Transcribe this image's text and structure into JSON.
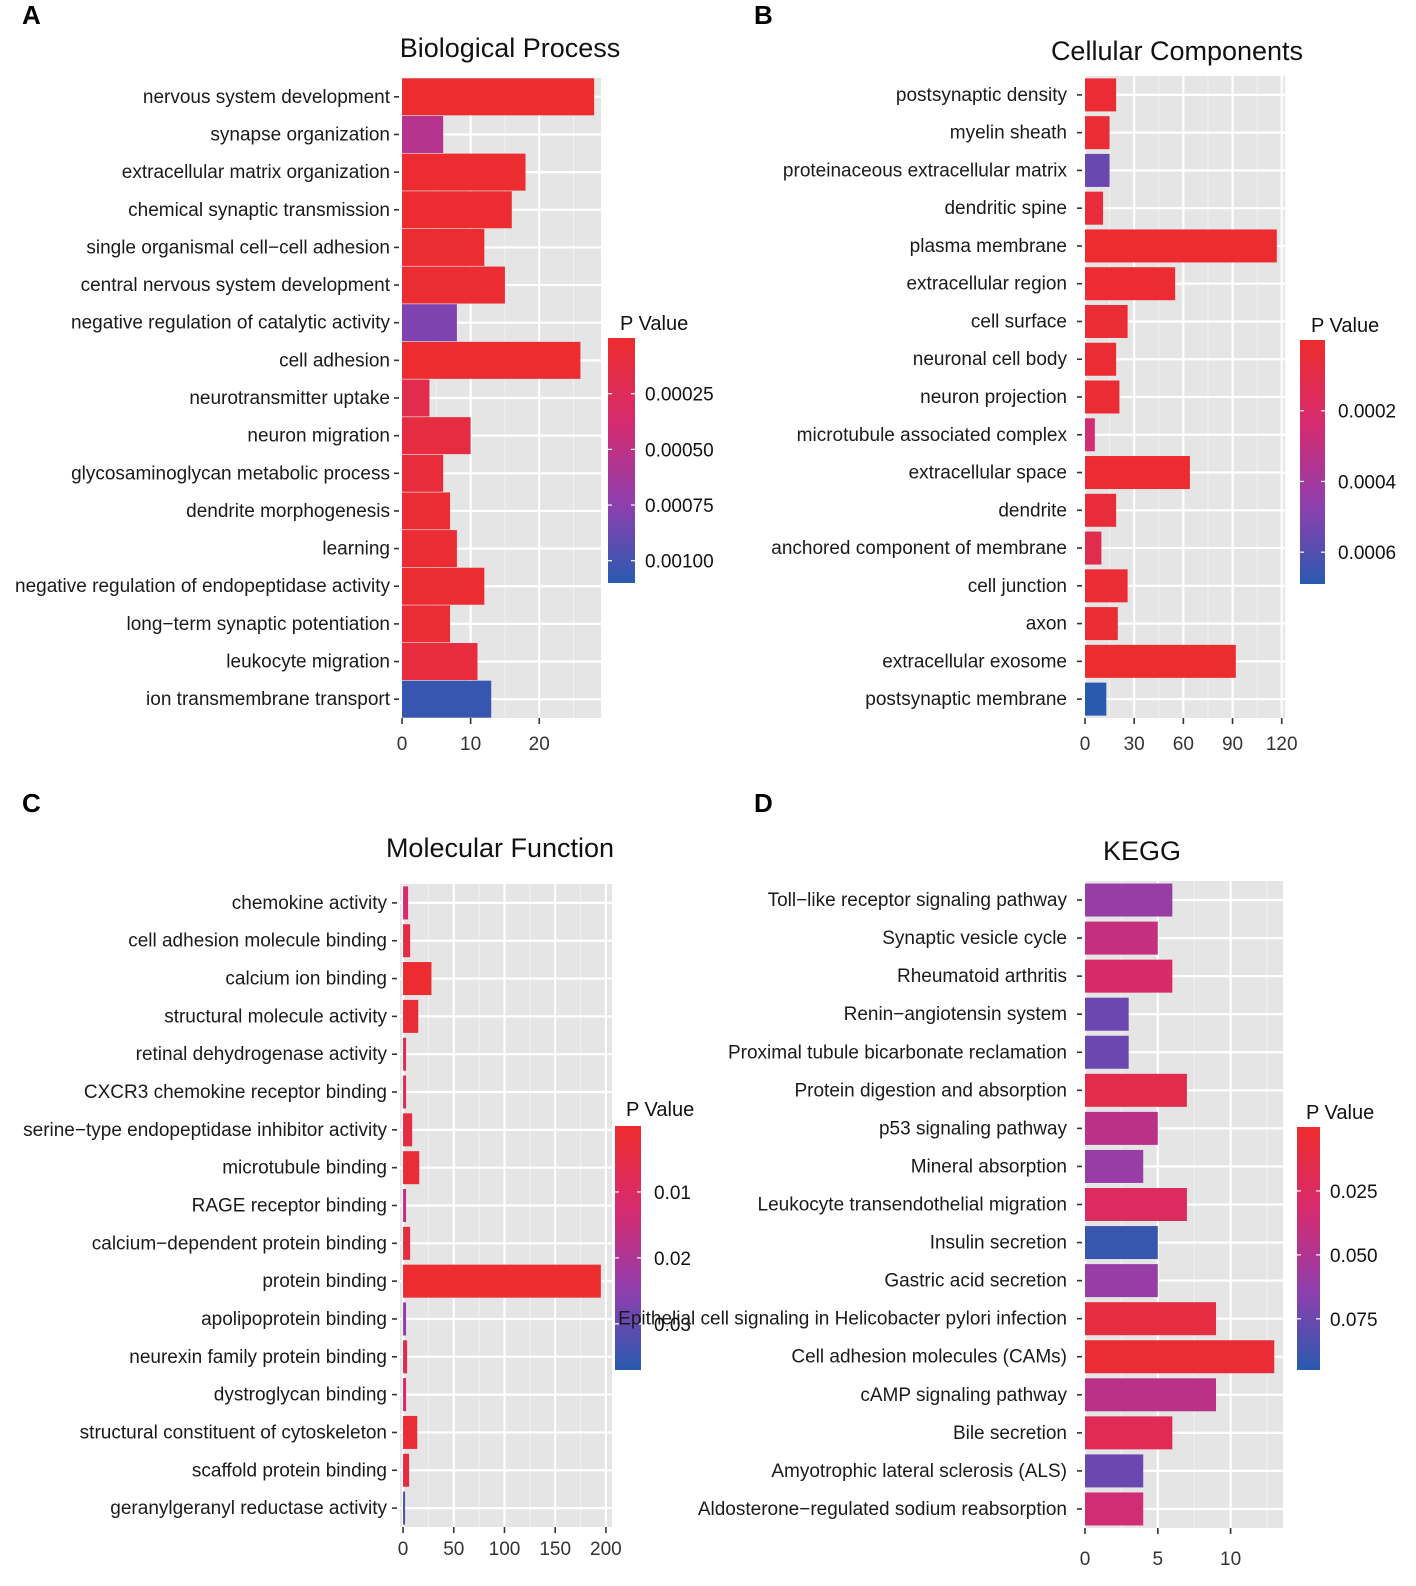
{
  "figure": {
    "panels": [
      {
        "letter": "A"
      },
      {
        "letter": "B"
      },
      {
        "letter": "C"
      },
      {
        "letter": "D"
      }
    ]
  },
  "chart_data": [
    {
      "panel": "A",
      "type": "bar",
      "orientation": "horizontal",
      "title": "Biological Process",
      "xlabel": "",
      "ylabel": "",
      "xlim": [
        0,
        29
      ],
      "xticks": [
        0,
        10,
        20
      ],
      "xtick_labels": [
        "0",
        "10",
        "20"
      ],
      "grid": true,
      "categories": [
        "nervous system development",
        "synapse organization",
        "extracellular matrix organization",
        "chemical synaptic transmission",
        "single organismal cell−cell adhesion",
        "central nervous system development",
        "negative regulation of catalytic activity",
        "cell adhesion",
        "neurotransmitter uptake",
        "neuron migration",
        "glycosaminoglycan metabolic process",
        "dendrite morphogenesis",
        "learning",
        "negative regulation of endopeptidase activity",
        "long−term synaptic potentiation",
        "leukocyte migration",
        "ion transmembrane transport"
      ],
      "values": [
        28,
        6,
        18,
        16,
        12,
        15,
        8,
        26,
        4,
        10,
        6,
        7,
        8,
        12,
        7,
        11,
        13
      ],
      "p_values": [
        2e-05,
        0.00055,
        3e-05,
        3e-05,
        4e-05,
        4e-05,
        0.0008,
        2e-05,
        0.00018,
        0.00012,
        8e-05,
        5e-05,
        5e-05,
        4e-05,
        6e-05,
        0.0001,
        0.00105
      ],
      "legend": {
        "title": "P Value",
        "position": "right",
        "range": [
          0.0,
          0.0011
        ],
        "ticks": [
          0.00025,
          0.0005,
          0.00075,
          0.001
        ],
        "tick_labels": [
          "0.00025",
          "0.00050",
          "0.00075",
          "0.00100"
        ]
      }
    },
    {
      "panel": "B",
      "type": "bar",
      "orientation": "horizontal",
      "title": "Cellular Components",
      "xlabel": "",
      "ylabel": "",
      "xlim": [
        0,
        122
      ],
      "xticks": [
        0,
        30,
        60,
        90,
        120
      ],
      "xtick_labels": [
        "0",
        "30",
        "60",
        "90",
        "120"
      ],
      "grid": true,
      "categories": [
        "postsynaptic density",
        "myelin sheath",
        "proteinaceous extracellular matrix",
        "dendritic spine",
        "plasma membrane",
        "extracellular region",
        "cell surface",
        "neuronal cell body",
        "neuron projection",
        "microtubule associated complex",
        "extracellular space",
        "dendrite",
        "anchored component of membrane",
        "cell junction",
        "axon",
        "extracellular exosome",
        "postsynaptic membrane"
      ],
      "values": [
        19,
        15,
        15,
        11,
        117,
        55,
        26,
        19,
        21,
        6,
        64,
        19,
        10,
        26,
        20,
        92,
        13
      ],
      "p_values": [
        3e-05,
        4e-05,
        0.00055,
        5e-05,
        1e-05,
        2e-05,
        3e-05,
        3e-05,
        3e-05,
        0.00025,
        2e-05,
        5e-05,
        0.00012,
        3e-05,
        3e-05,
        1e-05,
        0.0007
      ],
      "legend": {
        "title": "P Value",
        "position": "right",
        "range": [
          0.0,
          0.00069
        ],
        "ticks": [
          0.0002,
          0.0004,
          0.0006
        ],
        "tick_labels": [
          "0.0002",
          "0.0004",
          "0.0006"
        ]
      }
    },
    {
      "panel": "C",
      "type": "bar",
      "orientation": "horizontal",
      "title": "Molecular Function",
      "xlabel": "",
      "ylabel": "",
      "xlim": [
        -3,
        206
      ],
      "xticks": [
        0,
        50,
        100,
        150,
        200
      ],
      "xtick_labels": [
        "0",
        "50",
        "100",
        "150",
        "200"
      ],
      "grid": true,
      "categories": [
        "chemokine activity",
        "cell adhesion molecule binding",
        "calcium ion binding",
        "structural molecule activity",
        "retinal dehydrogenase activity",
        "CXCR3 chemokine receptor binding",
        "serine−type endopeptidase inhibitor activity",
        "microtubule binding",
        "RAGE receptor binding",
        "calcium−dependent protein binding",
        "protein binding",
        "apolipoprotein binding",
        "neurexin family protein binding",
        "dystroglycan binding",
        "structural constituent of cytoskeleton",
        "scaffold protein binding",
        "geranylgeranyl reductase activity"
      ],
      "values": [
        5,
        7,
        28,
        15,
        3,
        3,
        9,
        16,
        3,
        7,
        195,
        3,
        4,
        3,
        14,
        6,
        2
      ],
      "p_values": [
        0.012,
        0.005,
        0.001,
        0.002,
        0.009,
        0.008,
        0.004,
        0.002,
        0.016,
        0.004,
        0.0005,
        0.024,
        0.007,
        0.01,
        0.002,
        0.004,
        0.033
      ],
      "legend": {
        "title": "P Value",
        "position": "right",
        "range": [
          0.0,
          0.037
        ],
        "ticks": [
          0.01,
          0.02,
          0.03
        ],
        "tick_labels": [
          "0.01",
          "0.02",
          "0.03"
        ]
      }
    },
    {
      "panel": "D",
      "type": "bar",
      "orientation": "horizontal",
      "title": "KEGG",
      "xlabel": "",
      "ylabel": "",
      "xlim": [
        0,
        13.6
      ],
      "xticks": [
        0,
        5,
        10
      ],
      "xtick_labels": [
        "0",
        "5",
        "10"
      ],
      "grid": true,
      "categories": [
        "Toll−like receptor signaling pathway",
        "Synaptic vesicle cycle",
        "Rheumatoid arthritis",
        "Renin−angiotensin system",
        "Proximal tubule bicarbonate reclamation",
        "Protein digestion and absorption",
        "p53 signaling pathway",
        "Mineral absorption",
        "Leukocyte transendothelial migration",
        "Insulin secretion",
        "Gastric acid secretion",
        "Epithelial cell signaling in Helicobacter pylori infection",
        "Cell adhesion molecules (CAMs)",
        "cAMP signaling pathway",
        "Bile secretion",
        "Amyotrophic lateral sclerosis (ALS)",
        "Aldosterone−regulated sodium reabsorption"
      ],
      "values": [
        6,
        5,
        6,
        3,
        3,
        7,
        5,
        4,
        7,
        5,
        5,
        9,
        13,
        9,
        6,
        4,
        4
      ],
      "p_values": [
        0.06,
        0.04,
        0.03,
        0.075,
        0.075,
        0.015,
        0.045,
        0.06,
        0.025,
        0.09,
        0.06,
        0.01,
        0.005,
        0.045,
        0.02,
        0.075,
        0.035
      ],
      "legend": {
        "title": "P Value",
        "position": "right",
        "range": [
          0.0,
          0.095
        ],
        "ticks": [
          0.025,
          0.05,
          0.075
        ],
        "tick_labels": [
          "0.025",
          "0.050",
          "0.075"
        ]
      }
    }
  ]
}
